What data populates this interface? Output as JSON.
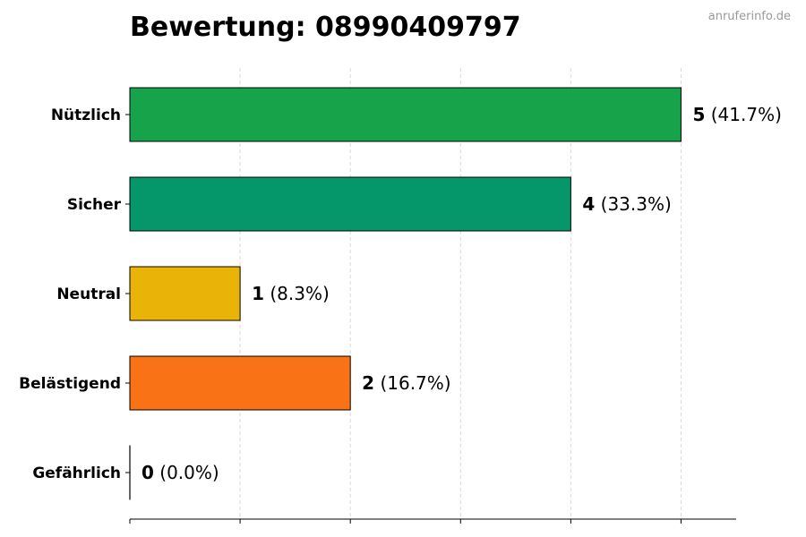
{
  "watermark": "anruferinfo.de",
  "chart_data": {
    "type": "bar",
    "orientation": "horizontal",
    "title": "Bewertung: 08990409797",
    "xlabel": "",
    "ylabel": "",
    "xlim": [
      0,
      5.5
    ],
    "grid": true,
    "legend": "none",
    "categories": [
      "Nützlich",
      "Sicher",
      "Neutral",
      "Belästigend",
      "Gefährlich"
    ],
    "values": [
      5,
      4,
      1,
      2,
      0
    ],
    "percent_labels": [
      "(41.7%)",
      "(33.3%)",
      "(8.3%)",
      "(16.7%)",
      "(0.0%)"
    ],
    "colors": [
      "#16a34a",
      "#059669",
      "#eab308",
      "#f97316",
      "#dc2626"
    ]
  }
}
